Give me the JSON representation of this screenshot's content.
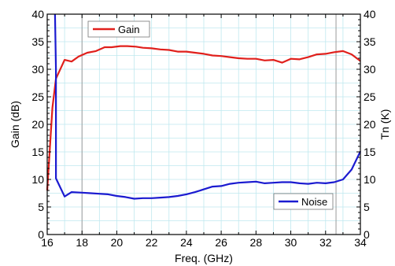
{
  "chart_data": {
    "type": "line",
    "xlabel": "Freq. (GHz)",
    "ylabel_left": "Gain (dB)",
    "ylabel_right": "Tn (K)",
    "xlim": [
      16,
      34
    ],
    "ylim_left": [
      0,
      40
    ],
    "ylim_right": [
      0,
      40
    ],
    "x_ticks": [
      16,
      18,
      20,
      22,
      24,
      26,
      28,
      30,
      32,
      34
    ],
    "y_ticks_left": [
      0,
      5,
      10,
      15,
      20,
      25,
      30,
      35,
      40
    ],
    "y_ticks_right": [
      0,
      5,
      10,
      15,
      20,
      25,
      30,
      35,
      40
    ],
    "grid": true,
    "vertical_markers": [
      18,
      32.6
    ],
    "legends": [
      {
        "label": "Gain",
        "color": "#e0201c",
        "placement": "top-left"
      },
      {
        "label": "Noise",
        "color": "#1b1bd0",
        "placement": "bottom-right"
      }
    ],
    "series": [
      {
        "name": "Gain",
        "axis": "left",
        "color": "#e0201c",
        "x": [
          16,
          16.3,
          16.5,
          17,
          17.4,
          17.8,
          18.3,
          18.8,
          19.3,
          19.7,
          20.2,
          20.6,
          21.1,
          21.5,
          22,
          22.5,
          23,
          23.5,
          24,
          24.5,
          25,
          25.5,
          26,
          26.5,
          27,
          27.5,
          28,
          28.5,
          29,
          29.5,
          30,
          30.5,
          31,
          31.5,
          32,
          32.5,
          33,
          33.5,
          34
        ],
        "y": [
          8,
          23,
          28.3,
          31.7,
          31.4,
          32.3,
          33.0,
          33.3,
          34.0,
          34.0,
          34.2,
          34.2,
          34.1,
          33.9,
          33.8,
          33.6,
          33.5,
          33.2,
          33.2,
          33.0,
          32.8,
          32.5,
          32.4,
          32.2,
          32.0,
          31.9,
          31.9,
          31.6,
          31.7,
          31.2,
          31.9,
          31.8,
          32.2,
          32.7,
          32.8,
          33.1,
          33.3,
          32.7,
          31.5
        ]
      },
      {
        "name": "Noise",
        "axis": "right",
        "color": "#1b1bd0",
        "x": [
          16.45,
          16.5,
          16.5,
          17,
          17.4,
          18,
          18.5,
          19,
          19.5,
          20,
          20.5,
          21,
          21.5,
          22,
          22.5,
          23,
          23.5,
          24,
          24.5,
          25,
          25.5,
          26,
          26.5,
          27,
          27.5,
          28,
          28.5,
          29,
          29.5,
          30,
          30.5,
          31,
          31.5,
          32,
          32.5,
          33,
          33.5,
          34
        ],
        "y": [
          40,
          30,
          10.2,
          6.9,
          7.7,
          7.6,
          7.5,
          7.4,
          7.3,
          7.0,
          6.8,
          6.5,
          6.6,
          6.6,
          6.7,
          6.8,
          7.0,
          7.3,
          7.7,
          8.2,
          8.7,
          8.8,
          9.2,
          9.4,
          9.5,
          9.6,
          9.3,
          9.4,
          9.5,
          9.5,
          9.3,
          9.2,
          9.4,
          9.3,
          9.5,
          10.0,
          11.8,
          15.1
        ]
      }
    ]
  }
}
